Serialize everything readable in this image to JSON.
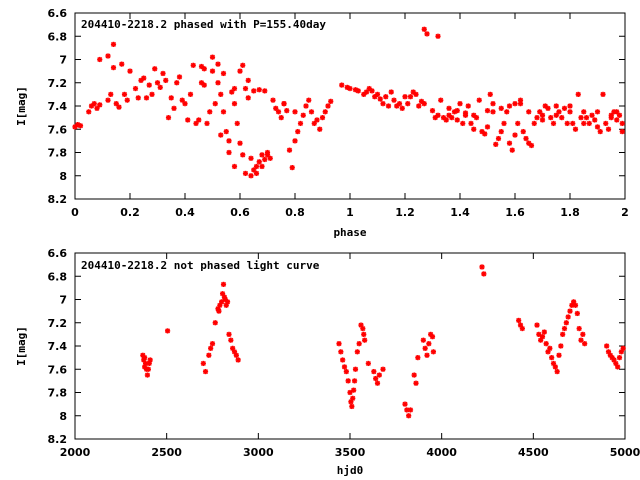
{
  "chart_data": [
    {
      "type": "scatter",
      "title": "204410-2218.2 phased with P=155.40day",
      "xlabel": "phase",
      "ylabel": "I[mag]",
      "xlim": [
        0,
        2
      ],
      "ylim": [
        8.2,
        6.6
      ],
      "y_inverted": true,
      "xticks": [
        "0",
        "0.2",
        "0.4",
        "0.6",
        "0.8",
        "1",
        "1.2",
        "1.4",
        "1.6",
        "1.8",
        "2"
      ],
      "yticks": [
        "6.6",
        "6.8",
        "7",
        "7.2",
        "7.4",
        "7.6",
        "7.8",
        "8",
        "8.2"
      ],
      "color": "#ff0000",
      "grid": false,
      "points": [
        [
          0.0,
          7.58
        ],
        [
          0.01,
          7.56
        ],
        [
          0.02,
          7.57
        ],
        [
          0.05,
          7.45
        ],
        [
          0.06,
          7.4
        ],
        [
          0.07,
          7.38
        ],
        [
          0.08,
          7.42
        ],
        [
          0.09,
          7.39
        ],
        [
          0.12,
          7.35
        ],
        [
          0.13,
          7.3
        ],
        [
          0.14,
          7.07
        ],
        [
          0.15,
          7.38
        ],
        [
          0.16,
          7.41
        ],
        [
          0.09,
          7.0
        ],
        [
          0.12,
          6.97
        ],
        [
          0.14,
          6.87
        ],
        [
          0.17,
          7.04
        ],
        [
          0.18,
          7.3
        ],
        [
          0.19,
          7.35
        ],
        [
          0.2,
          7.1
        ],
        [
          0.22,
          7.25
        ],
        [
          0.23,
          7.33
        ],
        [
          0.24,
          7.18
        ],
        [
          0.25,
          7.16
        ],
        [
          0.26,
          7.33
        ],
        [
          0.27,
          7.22
        ],
        [
          0.28,
          7.3
        ],
        [
          0.29,
          7.08
        ],
        [
          0.3,
          7.2
        ],
        [
          0.31,
          7.24
        ],
        [
          0.32,
          7.12
        ],
        [
          0.33,
          7.18
        ],
        [
          0.34,
          7.5
        ],
        [
          0.35,
          7.33
        ],
        [
          0.36,
          7.42
        ],
        [
          0.37,
          7.2
        ],
        [
          0.38,
          7.15
        ],
        [
          0.39,
          7.35
        ],
        [
          0.4,
          7.38
        ],
        [
          0.41,
          7.52
        ],
        [
          0.42,
          7.3
        ],
        [
          0.43,
          7.05
        ],
        [
          0.44,
          7.55
        ],
        [
          0.45,
          7.52
        ],
        [
          0.46,
          7.2
        ],
        [
          0.47,
          7.08
        ],
        [
          0.48,
          7.55
        ],
        [
          0.49,
          7.45
        ],
        [
          0.5,
          7.1
        ],
        [
          0.51,
          7.38
        ],
        [
          0.52,
          7.2
        ],
        [
          0.53,
          7.3
        ],
        [
          0.54,
          7.45
        ],
        [
          0.55,
          7.62
        ],
        [
          0.56,
          7.7
        ],
        [
          0.57,
          7.28
        ],
        [
          0.58,
          7.38
        ],
        [
          0.59,
          7.55
        ],
        [
          0.6,
          7.72
        ],
        [
          0.61,
          7.82
        ],
        [
          0.62,
          7.25
        ],
        [
          0.63,
          7.33
        ],
        [
          0.64,
          7.85
        ],
        [
          0.65,
          7.95
        ],
        [
          0.66,
          7.92
        ],
        [
          0.67,
          7.88
        ],
        [
          0.68,
          7.82
        ],
        [
          0.69,
          7.86
        ],
        [
          0.7,
          7.8
        ],
        [
          0.71,
          7.85
        ],
        [
          0.72,
          7.35
        ],
        [
          0.73,
          7.42
        ],
        [
          0.74,
          7.45
        ],
        [
          0.75,
          7.5
        ],
        [
          0.76,
          7.38
        ],
        [
          0.77,
          7.44
        ],
        [
          0.78,
          7.78
        ],
        [
          0.79,
          7.93
        ],
        [
          0.8,
          7.7
        ],
        [
          0.81,
          7.62
        ],
        [
          0.82,
          7.55
        ],
        [
          0.83,
          7.48
        ],
        [
          0.84,
          7.4
        ],
        [
          0.85,
          7.35
        ],
        [
          0.86,
          7.45
        ],
        [
          0.87,
          7.55
        ],
        [
          0.88,
          7.52
        ],
        [
          0.89,
          7.6
        ],
        [
          0.9,
          7.5
        ],
        [
          0.91,
          7.45
        ],
        [
          0.92,
          7.4
        ],
        [
          0.93,
          7.36
        ],
        [
          0.46,
          7.06
        ],
        [
          0.47,
          7.22
        ],
        [
          0.5,
          6.98
        ],
        [
          0.52,
          7.04
        ],
        [
          0.54,
          7.12
        ],
        [
          0.58,
          7.25
        ],
        [
          0.6,
          7.1
        ],
        [
          0.61,
          7.05
        ],
        [
          0.63,
          7.18
        ],
        [
          0.65,
          7.27
        ],
        [
          0.67,
          7.26
        ],
        [
          0.69,
          7.27
        ],
        [
          0.58,
          7.92
        ],
        [
          0.62,
          7.98
        ],
        [
          0.64,
          8.0
        ],
        [
          0.66,
          7.98
        ],
        [
          0.68,
          7.92
        ],
        [
          0.7,
          7.82
        ],
        [
          0.53,
          7.65
        ],
        [
          0.56,
          7.8
        ],
        [
          0.76,
          7.38
        ],
        [
          0.8,
          7.45
        ],
        [
          0.97,
          7.22
        ],
        [
          0.99,
          7.24
        ],
        [
          1.0,
          7.25
        ],
        [
          1.02,
          7.26
        ],
        [
          1.03,
          7.27
        ],
        [
          1.05,
          7.3
        ],
        [
          1.06,
          7.28
        ],
        [
          1.07,
          7.25
        ],
        [
          1.08,
          7.27
        ],
        [
          1.09,
          7.32
        ],
        [
          1.1,
          7.3
        ],
        [
          1.11,
          7.34
        ],
        [
          1.12,
          7.38
        ],
        [
          1.13,
          7.32
        ],
        [
          1.14,
          7.4
        ],
        [
          1.15,
          7.28
        ],
        [
          1.16,
          7.35
        ],
        [
          1.17,
          7.4
        ],
        [
          1.18,
          7.38
        ],
        [
          1.19,
          7.42
        ],
        [
          1.2,
          7.32
        ],
        [
          1.21,
          7.38
        ],
        [
          1.22,
          7.32
        ],
        [
          1.23,
          7.28
        ],
        [
          1.24,
          7.3
        ],
        [
          1.25,
          7.4
        ],
        [
          1.26,
          7.36
        ],
        [
          1.27,
          6.74
        ],
        [
          1.28,
          6.78
        ],
        [
          1.3,
          7.44
        ],
        [
          1.31,
          7.5
        ],
        [
          1.32,
          7.48
        ],
        [
          1.32,
          6.8
        ],
        [
          1.33,
          7.35
        ],
        [
          1.34,
          7.5
        ],
        [
          1.35,
          7.52
        ],
        [
          1.36,
          7.48
        ],
        [
          1.37,
          7.5
        ],
        [
          1.38,
          7.45
        ],
        [
          1.39,
          7.52
        ],
        [
          1.4,
          7.38
        ],
        [
          1.41,
          7.55
        ],
        [
          1.42,
          7.48
        ],
        [
          1.43,
          7.4
        ],
        [
          1.44,
          7.55
        ],
        [
          1.45,
          7.6
        ],
        [
          1.46,
          7.5
        ],
        [
          1.47,
          7.35
        ],
        [
          1.48,
          7.62
        ],
        [
          1.49,
          7.64
        ],
        [
          1.5,
          7.58
        ],
        [
          1.51,
          7.3
        ],
        [
          1.52,
          7.38
        ],
        [
          1.53,
          7.73
        ],
        [
          1.54,
          7.68
        ],
        [
          1.55,
          7.62
        ],
        [
          1.56,
          7.55
        ],
        [
          1.57,
          7.45
        ],
        [
          1.58,
          7.72
        ],
        [
          1.59,
          7.78
        ],
        [
          1.6,
          7.65
        ],
        [
          1.61,
          7.55
        ],
        [
          1.62,
          7.38
        ],
        [
          1.63,
          7.62
        ],
        [
          1.64,
          7.68
        ],
        [
          1.65,
          7.72
        ],
        [
          1.66,
          7.74
        ],
        [
          1.67,
          7.55
        ],
        [
          1.68,
          7.5
        ],
        [
          1.69,
          7.45
        ],
        [
          1.7,
          7.48
        ],
        [
          1.71,
          7.4
        ],
        [
          1.72,
          7.42
        ],
        [
          1.73,
          7.5
        ],
        [
          1.74,
          7.55
        ],
        [
          1.75,
          7.48
        ],
        [
          1.76,
          7.45
        ],
        [
          1.77,
          7.5
        ],
        [
          1.78,
          7.42
        ],
        [
          1.79,
          7.55
        ],
        [
          1.8,
          7.4
        ],
        [
          1.81,
          7.55
        ],
        [
          1.82,
          7.6
        ],
        [
          1.83,
          7.3
        ],
        [
          1.84,
          7.5
        ],
        [
          1.85,
          7.45
        ],
        [
          1.86,
          7.5
        ],
        [
          1.87,
          7.55
        ],
        [
          1.88,
          7.48
        ],
        [
          1.89,
          7.52
        ],
        [
          1.9,
          7.58
        ],
        [
          1.91,
          7.62
        ],
        [
          1.92,
          7.3
        ],
        [
          1.93,
          7.55
        ],
        [
          1.94,
          7.6
        ],
        [
          1.95,
          7.5
        ],
        [
          1.96,
          7.45
        ],
        [
          1.97,
          7.52
        ],
        [
          1.98,
          7.48
        ],
        [
          1.99,
          7.55
        ],
        [
          1.27,
          7.38
        ],
        [
          1.36,
          7.42
        ],
        [
          1.39,
          7.44
        ],
        [
          1.42,
          7.46
        ],
        [
          1.45,
          7.48
        ],
        [
          1.5,
          7.44
        ],
        [
          1.55,
          7.42
        ],
        [
          1.6,
          7.38
        ],
        [
          1.65,
          7.45
        ],
        [
          1.7,
          7.52
        ],
        [
          1.75,
          7.4
        ],
        [
          1.8,
          7.45
        ],
        [
          1.85,
          7.55
        ],
        [
          1.9,
          7.45
        ],
        [
          1.95,
          7.48
        ],
        [
          1.99,
          7.62
        ],
        [
          1.97,
          7.45
        ],
        [
          1.62,
          7.35
        ],
        [
          1.58,
          7.4
        ],
        [
          1.52,
          7.45
        ]
      ]
    },
    {
      "type": "scatter",
      "title": "204410-2218.2 not phased light curve",
      "xlabel": "hjd0",
      "ylabel": "I[mag]",
      "xlim": [
        2000,
        5000
      ],
      "ylim": [
        8.2,
        6.6
      ],
      "y_inverted": true,
      "xticks": [
        "2000",
        "2500",
        "3000",
        "3500",
        "4000",
        "4500",
        "5000"
      ],
      "yticks": [
        "6.6",
        "6.8",
        "7",
        "7.2",
        "7.4",
        "7.6",
        "7.8",
        "8",
        "8.2"
      ],
      "color": "#ff0000",
      "grid": false,
      "points": [
        [
          2370,
          7.48
        ],
        [
          2375,
          7.52
        ],
        [
          2380,
          7.5
        ],
        [
          2385,
          7.55
        ],
        [
          2390,
          7.6
        ],
        [
          2395,
          7.65
        ],
        [
          2400,
          7.6
        ],
        [
          2405,
          7.55
        ],
        [
          2410,
          7.52
        ],
        [
          2380,
          7.58
        ],
        [
          2505,
          7.27
        ],
        [
          2700,
          7.55
        ],
        [
          2712,
          7.62
        ],
        [
          2730,
          7.48
        ],
        [
          2740,
          7.42
        ],
        [
          2750,
          7.38
        ],
        [
          2765,
          7.2
        ],
        [
          2780,
          7.08
        ],
        [
          2790,
          7.05
        ],
        [
          2800,
          7.02
        ],
        [
          2805,
          6.95
        ],
        [
          2810,
          6.87
        ],
        [
          2815,
          6.98
        ],
        [
          2820,
          7.0
        ],
        [
          2825,
          7.05
        ],
        [
          2840,
          7.3
        ],
        [
          2850,
          7.35
        ],
        [
          2860,
          7.42
        ],
        [
          2870,
          7.45
        ],
        [
          2880,
          7.48
        ],
        [
          2890,
          7.52
        ],
        [
          2785,
          7.1
        ],
        [
          2832,
          7.02
        ],
        [
          3440,
          7.38
        ],
        [
          3450,
          7.45
        ],
        [
          3460,
          7.52
        ],
        [
          3470,
          7.58
        ],
        [
          3480,
          7.62
        ],
        [
          3490,
          7.7
        ],
        [
          3500,
          7.8
        ],
        [
          3505,
          7.88
        ],
        [
          3510,
          7.92
        ],
        [
          3515,
          7.85
        ],
        [
          3520,
          7.78
        ],
        [
          3525,
          7.7
        ],
        [
          3530,
          7.6
        ],
        [
          3540,
          7.45
        ],
        [
          3550,
          7.38
        ],
        [
          3560,
          7.22
        ],
        [
          3570,
          7.25
        ],
        [
          3575,
          7.3
        ],
        [
          3580,
          7.35
        ],
        [
          3600,
          7.55
        ],
        [
          3630,
          7.62
        ],
        [
          3640,
          7.68
        ],
        [
          3650,
          7.72
        ],
        [
          3660,
          7.65
        ],
        [
          3680,
          7.6
        ],
        [
          3800,
          7.9
        ],
        [
          3810,
          7.95
        ],
        [
          3820,
          8.0
        ],
        [
          3830,
          7.95
        ],
        [
          3850,
          7.65
        ],
        [
          3860,
          7.72
        ],
        [
          3870,
          7.5
        ],
        [
          3900,
          7.35
        ],
        [
          3910,
          7.42
        ],
        [
          3920,
          7.48
        ],
        [
          3930,
          7.38
        ],
        [
          3940,
          7.3
        ],
        [
          3950,
          7.32
        ],
        [
          3955,
          7.45
        ],
        [
          4220,
          6.72
        ],
        [
          4230,
          6.78
        ],
        [
          4420,
          7.18
        ],
        [
          4430,
          7.22
        ],
        [
          4440,
          7.25
        ],
        [
          4520,
          7.22
        ],
        [
          4530,
          7.3
        ],
        [
          4540,
          7.35
        ],
        [
          4550,
          7.32
        ],
        [
          4560,
          7.28
        ],
        [
          4570,
          7.38
        ],
        [
          4580,
          7.45
        ],
        [
          4590,
          7.42
        ],
        [
          4600,
          7.5
        ],
        [
          4610,
          7.55
        ],
        [
          4620,
          7.58
        ],
        [
          4630,
          7.62
        ],
        [
          4640,
          7.48
        ],
        [
          4650,
          7.4
        ],
        [
          4660,
          7.3
        ],
        [
          4670,
          7.25
        ],
        [
          4680,
          7.2
        ],
        [
          4690,
          7.15
        ],
        [
          4700,
          7.1
        ],
        [
          4710,
          7.05
        ],
        [
          4720,
          7.02
        ],
        [
          4730,
          7.05
        ],
        [
          4740,
          7.12
        ],
        [
          4750,
          7.25
        ],
        [
          4760,
          7.35
        ],
        [
          4770,
          7.3
        ],
        [
          4780,
          7.38
        ],
        [
          4900,
          7.4
        ],
        [
          4910,
          7.45
        ],
        [
          4920,
          7.48
        ],
        [
          4930,
          7.5
        ],
        [
          4940,
          7.52
        ],
        [
          4950,
          7.55
        ],
        [
          4960,
          7.58
        ],
        [
          4970,
          7.5
        ],
        [
          4980,
          7.45
        ],
        [
          4990,
          7.42
        ]
      ]
    }
  ]
}
